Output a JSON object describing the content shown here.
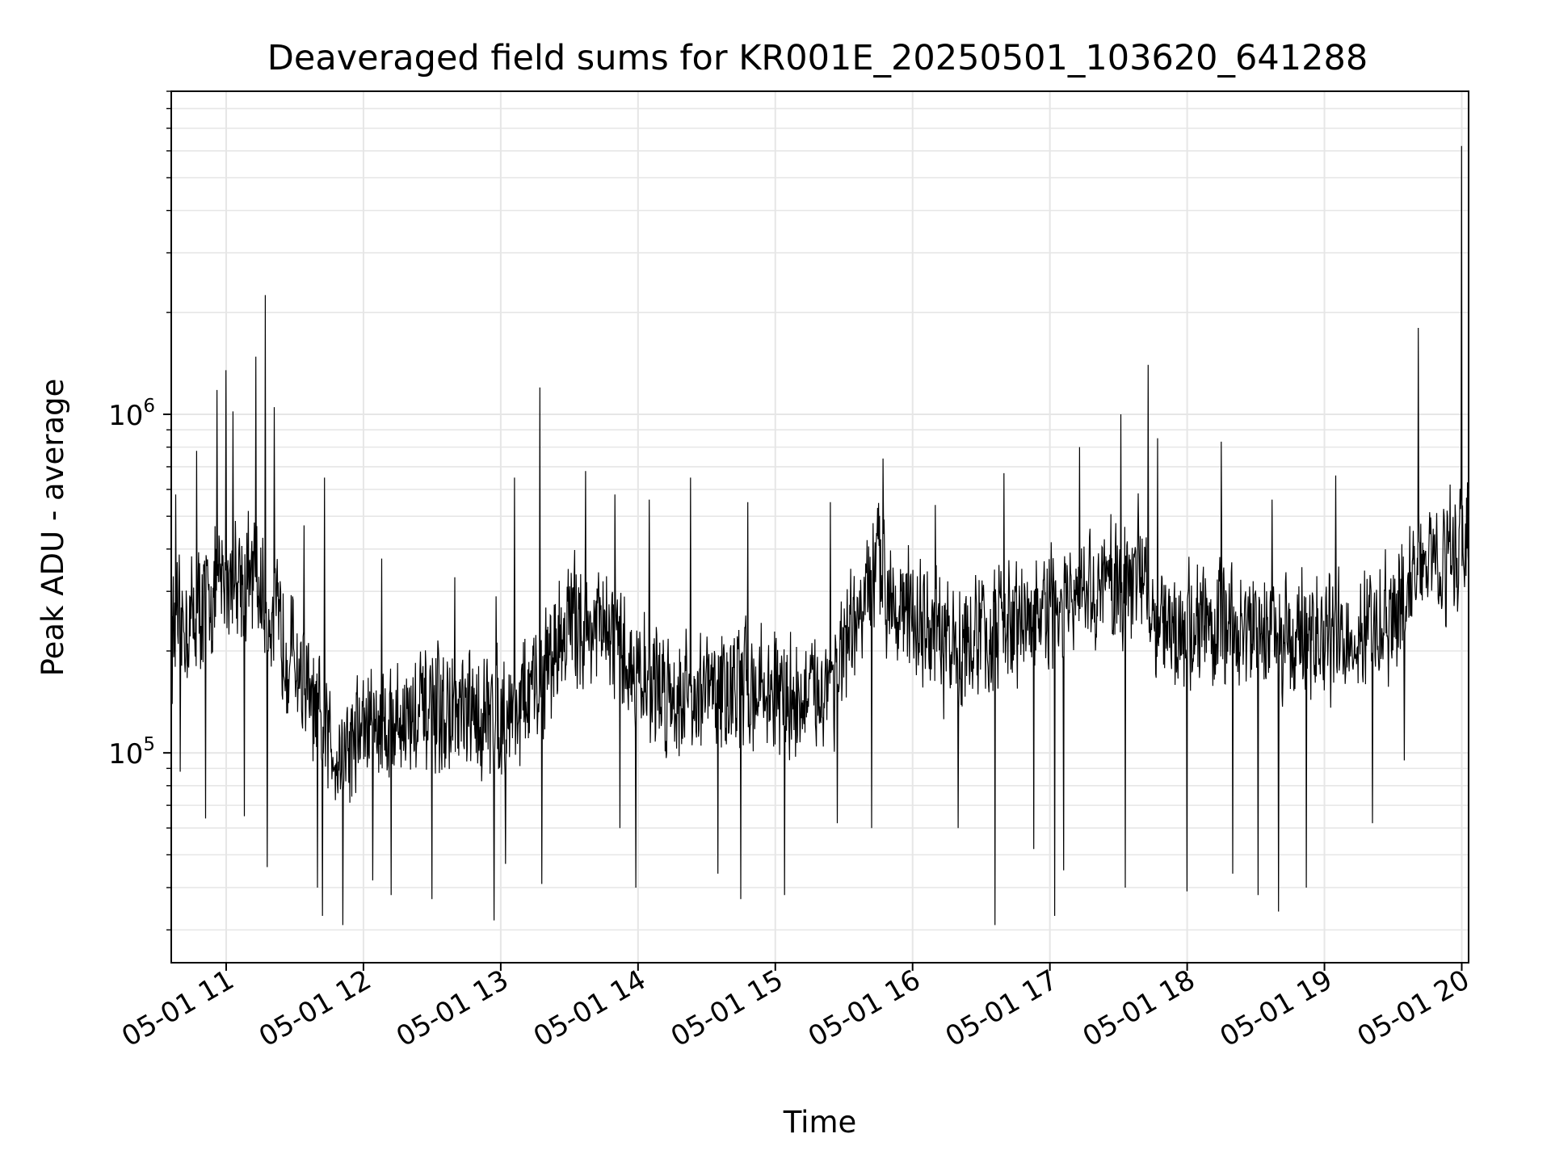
{
  "chart_data": {
    "type": "line",
    "title": "Deaveraged field sums for KR001E_20250501_103620_641288",
    "xlabel": "Time",
    "ylabel": "Peak ADU - average",
    "yscale": "log",
    "ylim": [
      24000,
      9000000
    ],
    "xlim": [
      "2025-05-01 10:36",
      "2025-05-01 20:03"
    ],
    "grid": true,
    "line_color": "#000000",
    "grid_color": "#e6e6e6",
    "x_ticks": [
      {
        "value": "2025-05-01 11:00",
        "label": "05-01 11"
      },
      {
        "value": "2025-05-01 12:00",
        "label": "05-01 12"
      },
      {
        "value": "2025-05-01 13:00",
        "label": "05-01 13"
      },
      {
        "value": "2025-05-01 14:00",
        "label": "05-01 14"
      },
      {
        "value": "2025-05-01 15:00",
        "label": "05-01 15"
      },
      {
        "value": "2025-05-01 16:00",
        "label": "05-01 16"
      },
      {
        "value": "2025-05-01 17:00",
        "label": "05-01 17"
      },
      {
        "value": "2025-05-01 18:00",
        "label": "05-01 18"
      },
      {
        "value": "2025-05-01 19:00",
        "label": "05-01 19"
      },
      {
        "value": "2025-05-01 20:00",
        "label": "05-01 20"
      }
    ],
    "y_ticks": [
      {
        "value": 100000,
        "base": "10",
        "exp": "5"
      },
      {
        "value": 1000000,
        "base": "10",
        "exp": "6"
      }
    ],
    "series": [
      {
        "x": [
          "2025-05-01 10:36",
          "2025-05-01 10:45",
          "2025-05-01 10:55",
          "2025-05-01 11:05",
          "2025-05-01 11:15",
          "2025-05-01 11:20",
          "2025-05-01 11:30",
          "2025-05-01 11:40",
          "2025-05-01 11:50",
          "2025-05-01 12:00",
          "2025-05-01 12:15",
          "2025-05-01 12:30",
          "2025-05-01 12:45",
          "2025-05-01 13:00",
          "2025-05-01 13:15",
          "2025-05-01 13:30",
          "2025-05-01 13:45",
          "2025-05-01 14:00",
          "2025-05-01 14:15",
          "2025-05-01 14:30",
          "2025-05-01 14:45",
          "2025-05-01 15:00",
          "2025-05-01 15:15",
          "2025-05-01 15:30",
          "2025-05-01 15:45",
          "2025-05-01 16:00",
          "2025-05-01 16:15",
          "2025-05-01 16:30",
          "2025-05-01 16:45",
          "2025-05-01 17:00",
          "2025-05-01 17:15",
          "2025-05-01 17:30",
          "2025-05-01 17:40",
          "2025-05-01 17:50",
          "2025-05-01 18:00",
          "2025-05-01 18:15",
          "2025-05-01 18:30",
          "2025-05-01 18:45",
          "2025-05-01 19:00",
          "2025-05-01 19:15",
          "2025-05-01 19:30",
          "2025-05-01 19:40",
          "2025-05-01 19:50",
          "2025-05-01 20:00",
          "2025-05-01 20:03"
        ],
        "y": [
          220000,
          250000,
          300000,
          350000,
          300000,
          250000,
          190000,
          120000,
          100000,
          120000,
          125000,
          130000,
          125000,
          130000,
          150000,
          250000,
          230000,
          170000,
          150000,
          150000,
          160000,
          150000,
          140000,
          190000,
          350000,
          250000,
          200000,
          220000,
          240000,
          260000,
          280000,
          330000,
          350000,
          220000,
          240000,
          240000,
          230000,
          220000,
          220000,
          220000,
          240000,
          350000,
          380000,
          400000,
          480000
        ]
      }
    ],
    "peaks": [
      {
        "x": "2025-05-01 10:38",
        "y": 580000
      },
      {
        "x": "2025-05-01 10:47",
        "y": 780000
      },
      {
        "x": "2025-05-01 10:56",
        "y": 1180000
      },
      {
        "x": "2025-05-01 11:00",
        "y": 1350000
      },
      {
        "x": "2025-05-01 11:03",
        "y": 1020000
      },
      {
        "x": "2025-05-01 11:13",
        "y": 1480000
      },
      {
        "x": "2025-05-01 11:17",
        "y": 2250000
      },
      {
        "x": "2025-05-01 11:21",
        "y": 1050000
      },
      {
        "x": "2025-05-01 11:34",
        "y": 470000
      },
      {
        "x": "2025-05-01 11:43",
        "y": 650000
      },
      {
        "x": "2025-05-01 12:08",
        "y": 375000
      },
      {
        "x": "2025-05-01 12:40",
        "y": 330000
      },
      {
        "x": "2025-05-01 12:58",
        "y": 290000
      },
      {
        "x": "2025-05-01 13:06",
        "y": 650000
      },
      {
        "x": "2025-05-01 13:17",
        "y": 1200000
      },
      {
        "x": "2025-05-01 13:37",
        "y": 680000
      },
      {
        "x": "2025-05-01 13:50",
        "y": 580000
      },
      {
        "x": "2025-05-01 14:05",
        "y": 560000
      },
      {
        "x": "2025-05-01 14:23",
        "y": 650000
      },
      {
        "x": "2025-05-01 14:48",
        "y": 550000
      },
      {
        "x": "2025-05-01 15:24",
        "y": 550000
      },
      {
        "x": "2025-05-01 15:47",
        "y": 740000
      },
      {
        "x": "2025-05-01 16:10",
        "y": 540000
      },
      {
        "x": "2025-05-01 16:40",
        "y": 670000
      },
      {
        "x": "2025-05-01 17:13",
        "y": 800000
      },
      {
        "x": "2025-05-01 17:31",
        "y": 1000000
      },
      {
        "x": "2025-05-01 17:43",
        "y": 1400000
      },
      {
        "x": "2025-05-01 17:47",
        "y": 850000
      },
      {
        "x": "2025-05-01 18:15",
        "y": 830000
      },
      {
        "x": "2025-05-01 18:37",
        "y": 560000
      },
      {
        "x": "2025-05-01 19:05",
        "y": 660000
      },
      {
        "x": "2025-05-01 19:41",
        "y": 1800000
      },
      {
        "x": "2025-05-01 19:55",
        "y": 620000
      },
      {
        "x": "2025-05-01 20:00",
        "y": 6200000
      }
    ],
    "troughs": [
      {
        "x": "2025-05-01 10:40",
        "y": 88000
      },
      {
        "x": "2025-05-01 10:51",
        "y": 64000
      },
      {
        "x": "2025-05-01 11:08",
        "y": 65000
      },
      {
        "x": "2025-05-01 11:18",
        "y": 46000
      },
      {
        "x": "2025-05-01 11:40",
        "y": 40000
      },
      {
        "x": "2025-05-01 11:42",
        "y": 33000
      },
      {
        "x": "2025-05-01 11:51",
        "y": 31000
      },
      {
        "x": "2025-05-01 12:04",
        "y": 42000
      },
      {
        "x": "2025-05-01 12:12",
        "y": 38000
      },
      {
        "x": "2025-05-01 12:30",
        "y": 37000
      },
      {
        "x": "2025-05-01 12:57",
        "y": 32000
      },
      {
        "x": "2025-05-01 13:02",
        "y": 47000
      },
      {
        "x": "2025-05-01 13:18",
        "y": 41000
      },
      {
        "x": "2025-05-01 13:52",
        "y": 60000
      },
      {
        "x": "2025-05-01 13:59",
        "y": 40000
      },
      {
        "x": "2025-05-01 14:35",
        "y": 44000
      },
      {
        "x": "2025-05-01 14:45",
        "y": 37000
      },
      {
        "x": "2025-05-01 15:04",
        "y": 38000
      },
      {
        "x": "2025-05-01 15:27",
        "y": 62000
      },
      {
        "x": "2025-05-01 15:42",
        "y": 60000
      },
      {
        "x": "2025-05-01 16:20",
        "y": 60000
      },
      {
        "x": "2025-05-01 16:36",
        "y": 31000
      },
      {
        "x": "2025-05-01 16:53",
        "y": 52000
      },
      {
        "x": "2025-05-01 17:02",
        "y": 33000
      },
      {
        "x": "2025-05-01 17:06",
        "y": 45000
      },
      {
        "x": "2025-05-01 17:33",
        "y": 40000
      },
      {
        "x": "2025-05-01 18:00",
        "y": 39000
      },
      {
        "x": "2025-05-01 18:20",
        "y": 44000
      },
      {
        "x": "2025-05-01 18:31",
        "y": 38000
      },
      {
        "x": "2025-05-01 18:40",
        "y": 34000
      },
      {
        "x": "2025-05-01 18:52",
        "y": 40000
      },
      {
        "x": "2025-05-01 19:21",
        "y": 62000
      },
      {
        "x": "2025-05-01 19:35",
        "y": 95000
      }
    ]
  }
}
